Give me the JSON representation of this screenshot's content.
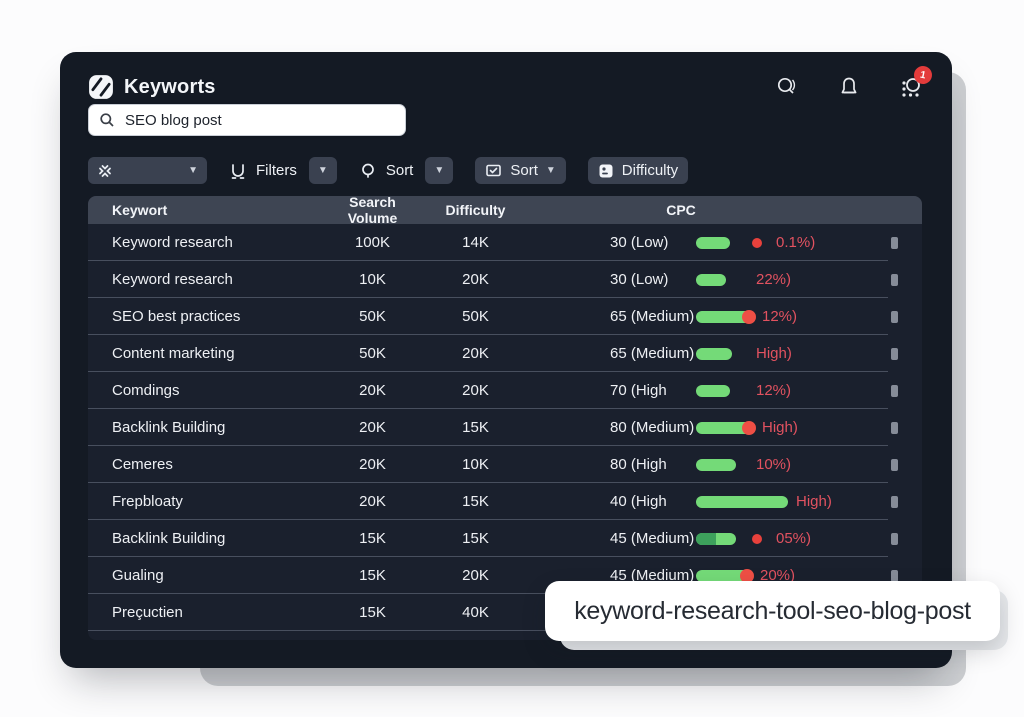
{
  "app": {
    "title": "Keyworts"
  },
  "header": {
    "icons": [
      "search",
      "notifications",
      "apps"
    ],
    "notification_badge": "1"
  },
  "search": {
    "value": "SEO blog post"
  },
  "toolbar": {
    "filters_label": "Filters",
    "sort_a_label": "Sort",
    "sort_b_label": "Sort",
    "difficulty_label": "Difficulty"
  },
  "table": {
    "columns": [
      "Keywort",
      "Search Volume",
      "Difficulty",
      "CPC"
    ],
    "rows": [
      {
        "keyword": "Keyword research",
        "volume": "100K",
        "difficulty": "14K",
        "score": "30 (Low)",
        "bar1": false,
        "bar2_type": "pill",
        "bar2_width": 34,
        "dot": true,
        "cpc": "0.1%)"
      },
      {
        "keyword": "Keyword research",
        "volume": "10K",
        "difficulty": "20K",
        "score": "30 (Low)",
        "bar1": true,
        "bar2_type": "pill",
        "bar2_width": 30,
        "dot": false,
        "cpc": "22%)"
      },
      {
        "keyword": "SEO best practices",
        "volume": "50K",
        "difficulty": "50K",
        "score": "65 (Medium)",
        "bar1": true,
        "bar2_type": "redtip",
        "bar2_width": 58,
        "dot": false,
        "cpc": "12%)"
      },
      {
        "keyword": "Content marketing",
        "volume": "50K",
        "difficulty": "20K",
        "score": "65 (Medium)",
        "bar1": true,
        "bar2_type": "pill",
        "bar2_width": 36,
        "dot": false,
        "cpc": "High)"
      },
      {
        "keyword": "Comdings",
        "volume": "20K",
        "difficulty": "20K",
        "score": "70 (High",
        "bar1": true,
        "bar2_type": "pill",
        "bar2_width": 34,
        "dot": false,
        "cpc": "12%)"
      },
      {
        "keyword": "Backlink Building",
        "volume": "20K",
        "difficulty": "15K",
        "score": "80 (Medium)",
        "bar1": true,
        "bar2_type": "redtip",
        "bar2_width": 58,
        "dot": false,
        "cpc": "High)"
      },
      {
        "keyword": "Cemeres",
        "volume": "20K",
        "difficulty": "10K",
        "score": "80 (High",
        "bar1": true,
        "bar2_type": "pill",
        "bar2_width": 40,
        "dot": false,
        "cpc": "10%)"
      },
      {
        "keyword": "Frepbloaty",
        "volume": "20K",
        "difficulty": "15K",
        "score": "40 (High",
        "bar1": true,
        "bar2_type": "long",
        "bar2_width": 92,
        "dot": false,
        "cpc": "High)"
      },
      {
        "keyword": "Backlink Building",
        "volume": "15K",
        "difficulty": "15K",
        "score": "45 (Medium)",
        "bar1": true,
        "bar2_type": "pill2",
        "bar2_width": 40,
        "dot": true,
        "cpc": "05%)"
      },
      {
        "keyword": "Gualing",
        "volume": "15K",
        "difficulty": "20K",
        "score": "45 (Medium)",
        "bar1": true,
        "bar2_type": "redtip",
        "bar2_width": 56,
        "dot": false,
        "cpc": "20%)"
      },
      {
        "keyword": "Preçuctien",
        "volume": "15K",
        "difficulty": "40K",
        "score": "",
        "bar1": true,
        "bar2_type": "none",
        "bar2_width": 0,
        "dot": false,
        "cpc": ""
      }
    ]
  },
  "tooltip": {
    "text": "keyword-research-tool-seo-blog-post"
  },
  "colors": {
    "window_bg": "#141a24",
    "table_header_bg": "#3e4553",
    "button_bg": "#3a4150",
    "green_dark": "#3da15c",
    "green_light": "#74da78",
    "red_text": "#e25260",
    "red_dot": "#e8413c",
    "badge_red": "#e33b3b",
    "backdrop": "#cdcfd2"
  }
}
